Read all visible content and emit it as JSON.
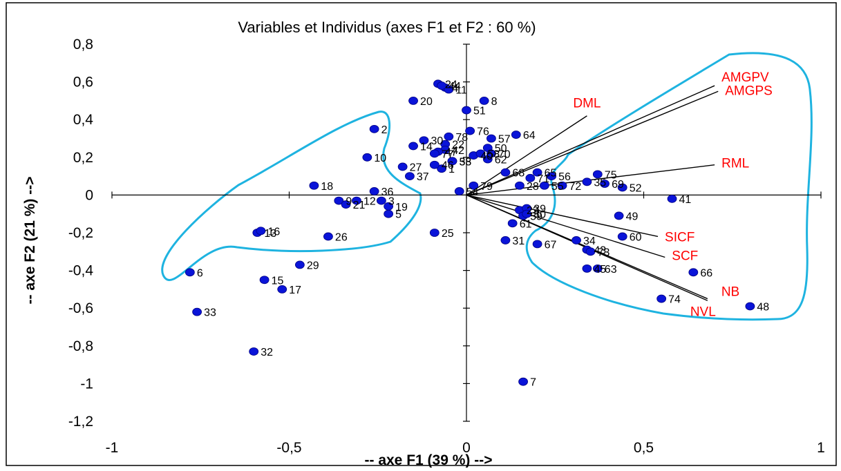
{
  "chart_data": {
    "type": "scatter",
    "title": "Variables et Individus (axes F1 et F2 : 60 %)",
    "xlabel": "-- axe F1 (39 %) -->",
    "ylabel": "-- axe F2 (21 %) -->",
    "xlim": [
      -1,
      1
    ],
    "ylim": [
      -1.2,
      0.8
    ],
    "xticks": [
      -1,
      -0.5,
      0,
      0.5,
      1
    ],
    "xtick_labels": [
      "-1",
      "-0,5",
      "0",
      "0,5",
      "1"
    ],
    "yticks": [
      0.8,
      0.6,
      0.4,
      0.2,
      0,
      -0.2,
      -0.4,
      -0.6,
      -0.8,
      -1,
      -1.2
    ],
    "ytick_labels": [
      "0,8",
      "0,6",
      "0,4",
      "0,2",
      "0",
      "-0,2",
      "-0,4",
      "-0,6",
      "-0,8",
      "-1",
      "-1,2"
    ],
    "grid": false,
    "variables": [
      {
        "name": "AMGPV",
        "x": 0.7,
        "y": 0.58
      },
      {
        "name": "AMGPS",
        "x": 0.71,
        "y": 0.55
      },
      {
        "name": "DML",
        "x": 0.34,
        "y": 0.42
      },
      {
        "name": "RML",
        "x": 0.7,
        "y": 0.16
      },
      {
        "name": "SICF",
        "x": 0.54,
        "y": -0.22
      },
      {
        "name": "SCF",
        "x": 0.56,
        "y": -0.33
      },
      {
        "name": "NB",
        "x": 0.68,
        "y": -0.55
      },
      {
        "name": "NVL",
        "x": 0.68,
        "y": -0.56
      }
    ],
    "individuals": [
      {
        "label": "1",
        "x": -0.07,
        "y": 0.14
      },
      {
        "label": "2",
        "x": -0.26,
        "y": 0.35
      },
      {
        "label": "3",
        "x": -0.24,
        "y": -0.03
      },
      {
        "label": "4",
        "x": -0.06,
        "y": 0.57
      },
      {
        "label": "5",
        "x": -0.22,
        "y": -0.1
      },
      {
        "label": "6",
        "x": -0.78,
        "y": -0.41
      },
      {
        "label": "7",
        "x": 0.16,
        "y": -0.99
      },
      {
        "label": "8",
        "x": 0.05,
        "y": 0.5
      },
      {
        "label": "9",
        "x": -0.36,
        "y": -0.03
      },
      {
        "label": "10",
        "x": -0.28,
        "y": 0.2
      },
      {
        "label": "11",
        "x": -0.05,
        "y": 0.56
      },
      {
        "label": "12",
        "x": -0.31,
        "y": -0.03
      },
      {
        "label": "13",
        "x": -0.59,
        "y": -0.2
      },
      {
        "label": "14",
        "x": -0.15,
        "y": 0.26
      },
      {
        "label": "15",
        "x": -0.57,
        "y": -0.45
      },
      {
        "label": "16",
        "x": -0.58,
        "y": -0.19
      },
      {
        "label": "17",
        "x": -0.52,
        "y": -0.5
      },
      {
        "label": "18",
        "x": -0.43,
        "y": 0.05
      },
      {
        "label": "19",
        "x": -0.22,
        "y": -0.06
      },
      {
        "label": "20",
        "x": -0.15,
        "y": 0.5
      },
      {
        "label": "21",
        "x": -0.34,
        "y": -0.05
      },
      {
        "label": "22",
        "x": -0.06,
        "y": 0.27
      },
      {
        "label": "23",
        "x": 0.15,
        "y": -0.08
      },
      {
        "label": "24",
        "x": -0.08,
        "y": 0.59
      },
      {
        "label": "25",
        "x": -0.09,
        "y": -0.2
      },
      {
        "label": "26",
        "x": -0.39,
        "y": -0.22
      },
      {
        "label": "27",
        "x": -0.18,
        "y": 0.15
      },
      {
        "label": "28",
        "x": 0.15,
        "y": 0.05
      },
      {
        "label": "29",
        "x": -0.47,
        "y": -0.37
      },
      {
        "label": "30",
        "x": -0.12,
        "y": 0.29
      },
      {
        "label": "31",
        "x": 0.11,
        "y": -0.24
      },
      {
        "label": "32",
        "x": -0.6,
        "y": -0.83
      },
      {
        "label": "33",
        "x": -0.76,
        "y": -0.62
      },
      {
        "label": "34",
        "x": 0.31,
        "y": -0.24
      },
      {
        "label": "35",
        "x": 0.34,
        "y": 0.07
      },
      {
        "label": "36",
        "x": -0.26,
        "y": 0.02
      },
      {
        "label": "37",
        "x": -0.16,
        "y": 0.1
      },
      {
        "label": "38",
        "x": -0.04,
        "y": 0.18
      },
      {
        "label": "39",
        "x": 0.17,
        "y": -0.07
      },
      {
        "label": "40",
        "x": 0.02,
        "y": 0.21
      },
      {
        "label": "41",
        "x": 0.58,
        "y": -0.02
      },
      {
        "label": "42",
        "x": -0.06,
        "y": 0.24
      },
      {
        "label": "43",
        "x": 0.34,
        "y": -0.29
      },
      {
        "label": "44",
        "x": -0.07,
        "y": 0.58
      },
      {
        "label": "45",
        "x": 0.34,
        "y": -0.39
      },
      {
        "label": "46",
        "x": -0.09,
        "y": 0.16
      },
      {
        "label": "47",
        "x": -0.08,
        "y": 0.23
      },
      {
        "label": "48",
        "x": 0.8,
        "y": -0.59
      },
      {
        "label": "49",
        "x": 0.43,
        "y": -0.11
      },
      {
        "label": "50",
        "x": 0.06,
        "y": 0.25
      },
      {
        "label": "51",
        "x": 0.0,
        "y": 0.45
      },
      {
        "label": "52",
        "x": 0.44,
        "y": 0.04
      },
      {
        "label": "53",
        "x": -0.04,
        "y": 0.18
      },
      {
        "label": "54",
        "x": -0.02,
        "y": 0.02
      },
      {
        "label": "55",
        "x": 0.22,
        "y": 0.05
      },
      {
        "label": "56",
        "x": 0.24,
        "y": 0.1
      },
      {
        "label": "57",
        "x": 0.07,
        "y": 0.3
      },
      {
        "label": "58",
        "x": 0.04,
        "y": 0.22
      },
      {
        "label": "59",
        "x": 0.16,
        "y": -0.11
      },
      {
        "label": "60",
        "x": 0.44,
        "y": -0.22
      },
      {
        "label": "61",
        "x": 0.13,
        "y": -0.15
      },
      {
        "label": "62",
        "x": 0.06,
        "y": 0.19
      },
      {
        "label": "63",
        "x": 0.37,
        "y": -0.39
      },
      {
        "label": "64",
        "x": 0.14,
        "y": 0.32
      },
      {
        "label": "65",
        "x": 0.2,
        "y": 0.12
      },
      {
        "label": "66",
        "x": 0.64,
        "y": -0.41
      },
      {
        "label": "67",
        "x": 0.2,
        "y": -0.26
      },
      {
        "label": "68",
        "x": 0.11,
        "y": 0.12
      },
      {
        "label": "69",
        "x": 0.39,
        "y": 0.06
      },
      {
        "label": "70",
        "x": 0.07,
        "y": 0.22
      },
      {
        "label": "71",
        "x": 0.18,
        "y": 0.09
      },
      {
        "label": "72",
        "x": 0.27,
        "y": 0.05
      },
      {
        "label": "73",
        "x": 0.35,
        "y": -0.3
      },
      {
        "label": "74",
        "x": 0.55,
        "y": -0.55
      },
      {
        "label": "75",
        "x": 0.37,
        "y": 0.11
      },
      {
        "label": "76",
        "x": 0.01,
        "y": 0.34
      },
      {
        "label": "77",
        "x": -0.09,
        "y": 0.22
      },
      {
        "label": "78",
        "x": -0.05,
        "y": 0.31
      },
      {
        "label": "79",
        "x": 0.02,
        "y": 0.05
      },
      {
        "label": "80",
        "x": 0.17,
        "y": -0.1
      }
    ]
  }
}
